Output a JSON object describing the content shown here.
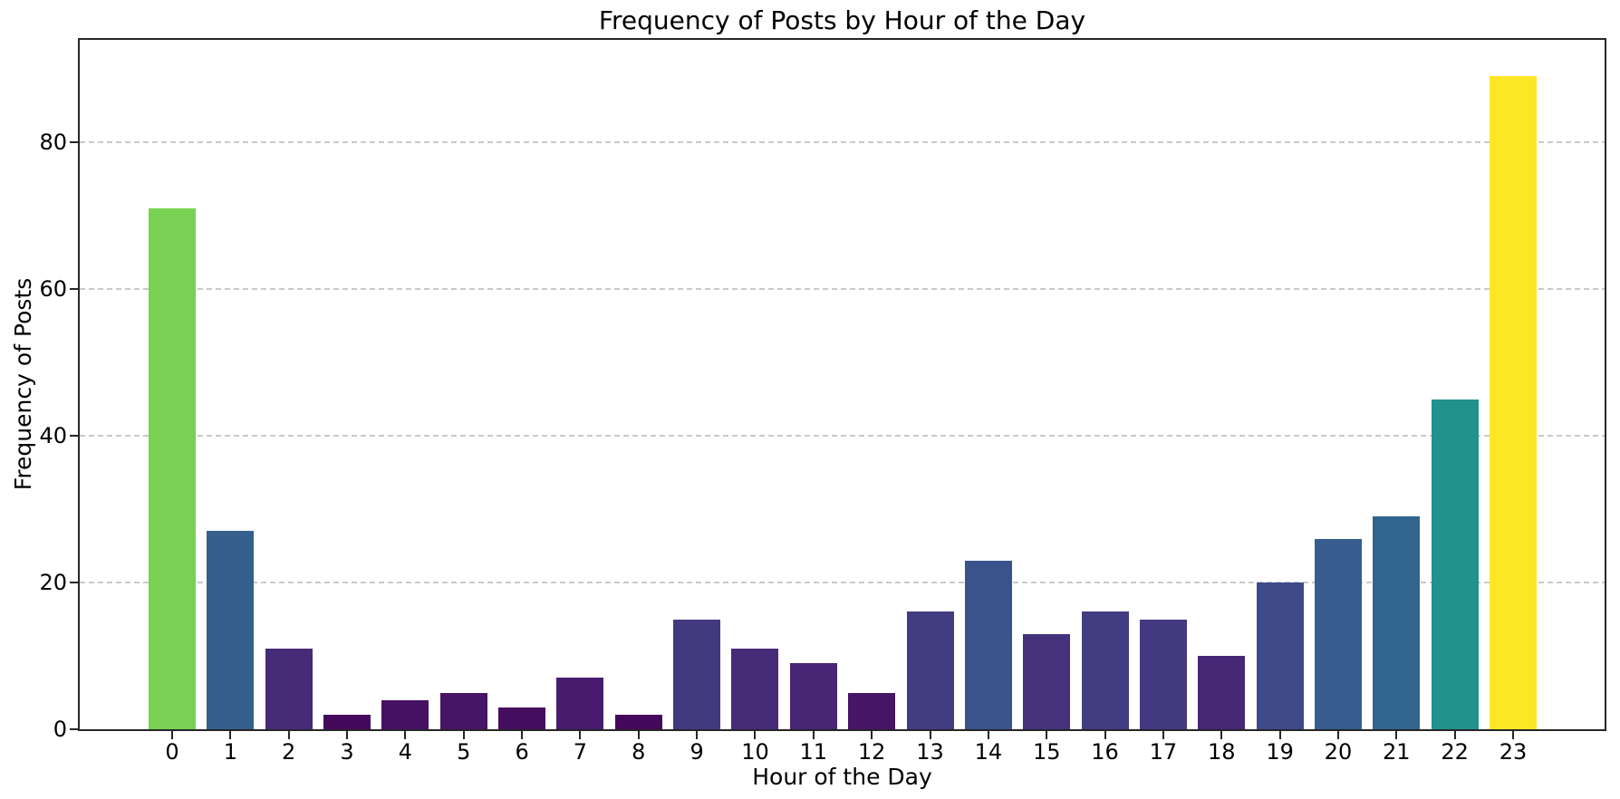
{
  "chart_data": {
    "type": "bar",
    "title": "Frequency of Posts by Hour of the Day",
    "xlabel": "Hour of the Day",
    "ylabel": "Frequency of Posts",
    "categories": [
      "0",
      "1",
      "2",
      "3",
      "4",
      "5",
      "6",
      "7",
      "8",
      "9",
      "10",
      "11",
      "12",
      "13",
      "14",
      "15",
      "16",
      "17",
      "18",
      "19",
      "20",
      "21",
      "22",
      "23"
    ],
    "values": [
      71,
      27,
      11,
      2,
      4,
      5,
      3,
      7,
      2,
      15,
      11,
      9,
      5,
      16,
      23,
      13,
      16,
      15,
      10,
      20,
      26,
      29,
      45,
      89
    ],
    "bar_colors": [
      "#78d152",
      "#35608d",
      "#462b79",
      "#45095b",
      "#461163",
      "#461566",
      "#450d5f",
      "#471c6e",
      "#45095b",
      "#433981",
      "#462b79",
      "#482475",
      "#461566",
      "#423d83",
      "#3a538b",
      "#45327d",
      "#423d83",
      "#433981",
      "#472877",
      "#3e4a89",
      "#365d8d",
      "#32658d",
      "#21928c",
      "#fde725"
    ],
    "colormap": "viridis",
    "ylim": [
      0,
      94
    ],
    "yticks": [
      0,
      20,
      40,
      60,
      80
    ],
    "grid": "y dashed",
    "gridline_color": "#c9c9c9",
    "spine_color": "#262626",
    "legend": "none",
    "background_color": "#ffffff"
  }
}
